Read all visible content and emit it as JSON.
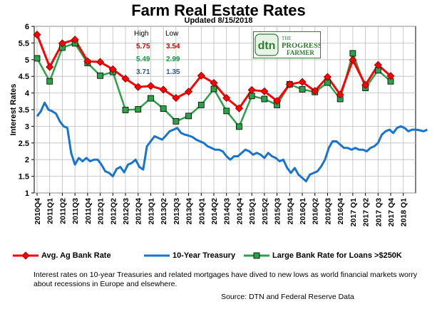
{
  "header": {
    "title": "Farm Real Estate Rates",
    "subtitle": "Updated 8/15/2018"
  },
  "colors": {
    "ag": "#ff0000",
    "treasury": "#1874cd",
    "large": "#2aa24a",
    "grid": "#bdbdbd",
    "ag_text": "#e00000",
    "large_text": "#1a9a40",
    "treasury_text": "#1f5fb0"
  },
  "highlow": {
    "high_label": "High",
    "low_label": "Low",
    "rows": [
      {
        "high": "5.75",
        "low": "3.54",
        "color_key": "ag_text"
      },
      {
        "high": "5.49",
        "low": "2.99",
        "color_key": "large_text"
      },
      {
        "high": "3.71",
        "low": "1.35",
        "color_key": "treasury_text"
      }
    ]
  },
  "logo": {
    "badge": "dtn",
    "line1": "THE",
    "line2": "PROGRESSIVE",
    "line3": "FARMER",
    "icon": "dtn-progressive-farmer-logo"
  },
  "legend": {
    "ag": "Avg. Ag Bank Rate",
    "treasury": "10-Year Treasury",
    "large": "Large Bank Rate for Loans >$250K"
  },
  "note": "Interest rates on 10-year Treasuries and related mortgages have dived to new lows as world financial markets worry about recessions in Europe and elsewhere.",
  "source": "Source: DTN  and Federal Reserve Data",
  "chart_data": {
    "type": "line",
    "title": "Farm Real Estate Rates",
    "ylabel": "Interest Rates",
    "xlabel": "",
    "ylim": [
      1,
      6
    ],
    "yticks": [
      "1",
      "1.5",
      "2",
      "2.5",
      "3",
      "3.5",
      "4",
      "4.5",
      "5",
      "5.5",
      "6"
    ],
    "grid": true,
    "legend_position": "bottom",
    "x_tick_labels": [
      "2010Q4",
      "2011Q1",
      "2011Q2",
      "2011Q3",
      "2011Q4",
      "2012Q1",
      "2012Q2",
      "2012Q3",
      "2012Q4",
      "2013Q1",
      "2013Q2",
      "2013Q3",
      "2013Q4",
      "2014Q1",
      "2014Q2",
      "2014Q3",
      "2014Q4",
      "2015Q1",
      "2015Q2",
      "2015Q3",
      "2015Q4",
      "2016Q1",
      "2016Q2",
      "2016Q3",
      "2016Q4",
      "2017 Q1",
      "2017 Q2",
      "2017 Q3",
      "2017 Q4",
      "2018 Q1"
    ],
    "series": [
      {
        "name": "Avg. Ag Bank Rate",
        "key": "ag",
        "x": [
          0,
          1,
          2,
          3,
          4,
          5,
          6,
          7,
          8,
          9,
          10,
          11,
          12,
          13,
          14,
          15,
          16,
          17,
          18,
          19,
          20,
          21,
          22,
          23,
          24,
          25,
          26,
          27,
          28
        ],
        "values": [
          5.75,
          4.78,
          5.49,
          5.6,
          4.95,
          4.93,
          4.71,
          4.43,
          4.18,
          4.21,
          4.1,
          3.85,
          4.04,
          4.52,
          4.3,
          3.85,
          3.54,
          4.09,
          4.05,
          3.76,
          4.26,
          4.33,
          4.06,
          4.48,
          3.95,
          4.99,
          4.24,
          4.84,
          4.51
        ]
      },
      {
        "name": "Large Bank Rate for Loans >$250K",
        "key": "large",
        "x": [
          0,
          1,
          2,
          3,
          4,
          5,
          6,
          7,
          8,
          9,
          10,
          11,
          12,
          13,
          14,
          15,
          16,
          17,
          18,
          19,
          20,
          21,
          22,
          23,
          24,
          25,
          26,
          27,
          28
        ],
        "values": [
          5.04,
          4.35,
          5.36,
          5.49,
          4.9,
          4.52,
          4.63,
          3.49,
          3.51,
          3.84,
          3.53,
          3.15,
          3.31,
          3.64,
          4.12,
          3.46,
          2.99,
          3.91,
          3.82,
          3.64,
          4.26,
          4.11,
          4.03,
          4.31,
          3.82,
          5.19,
          4.15,
          4.68,
          4.35
        ]
      },
      {
        "name": "10-Year Treasury",
        "key": "treasury",
        "x": [
          0,
          0.3,
          0.6,
          0.9,
          1.2,
          1.5,
          1.8,
          2.1,
          2.4,
          2.7,
          3.0,
          3.3,
          3.6,
          3.9,
          4.2,
          4.5,
          4.8,
          5.1,
          5.4,
          5.7,
          6.0,
          6.3,
          6.6,
          6.9,
          7.2,
          7.5,
          7.8,
          8.1,
          8.4,
          8.7,
          9.0,
          9.3,
          9.6,
          9.9,
          10.2,
          10.5,
          10.8,
          11.1,
          11.4,
          11.7,
          12.0,
          12.3,
          12.6,
          12.9,
          13.2,
          13.5,
          13.8,
          14.1,
          14.4,
          14.7,
          15.0,
          15.3,
          15.6,
          15.9,
          16.2,
          16.5,
          16.8,
          17.1,
          17.4,
          17.7,
          18.0,
          18.3,
          18.6,
          18.9,
          19.2,
          19.5,
          19.8,
          20.1,
          20.4,
          20.7,
          21.0,
          21.3,
          21.6,
          21.9,
          22.2,
          22.5,
          22.8,
          23.1,
          23.4,
          23.7,
          24.0,
          24.3,
          24.6,
          24.9,
          25.2,
          25.5,
          25.8,
          26.1,
          26.4,
          26.7,
          27.0,
          27.3,
          27.6,
          27.9,
          28.2,
          28.5,
          28.8,
          29.1,
          29.4,
          29.7,
          30.0,
          30.3,
          30.6,
          30.9
        ],
        "values": [
          3.3,
          3.45,
          3.71,
          3.5,
          3.45,
          3.38,
          3.15,
          3.0,
          2.95,
          2.2,
          1.85,
          2.05,
          1.95,
          2.05,
          1.95,
          2.0,
          2.0,
          1.85,
          1.65,
          1.6,
          1.5,
          1.72,
          1.78,
          1.62,
          1.85,
          1.9,
          2.0,
          1.78,
          1.7,
          2.4,
          2.55,
          2.7,
          2.65,
          2.6,
          2.72,
          2.85,
          2.9,
          2.95,
          2.8,
          2.75,
          2.72,
          2.68,
          2.6,
          2.55,
          2.5,
          2.4,
          2.35,
          2.3,
          2.3,
          2.25,
          2.1,
          2.0,
          2.1,
          2.1,
          2.2,
          2.3,
          2.25,
          2.15,
          2.2,
          2.15,
          2.05,
          2.2,
          2.1,
          2.05,
          1.95,
          2.0,
          1.75,
          1.6,
          1.75,
          1.55,
          1.45,
          1.35,
          1.55,
          1.6,
          1.65,
          1.8,
          2.0,
          2.35,
          2.55,
          2.55,
          2.45,
          2.35,
          2.35,
          2.3,
          2.35,
          2.3,
          2.3,
          2.25,
          2.35,
          2.4,
          2.5,
          2.75,
          2.85,
          2.9,
          2.8,
          2.95,
          3.0,
          2.95,
          2.85,
          2.9,
          2.9,
          2.88,
          2.85,
          2.9
        ]
      }
    ]
  }
}
